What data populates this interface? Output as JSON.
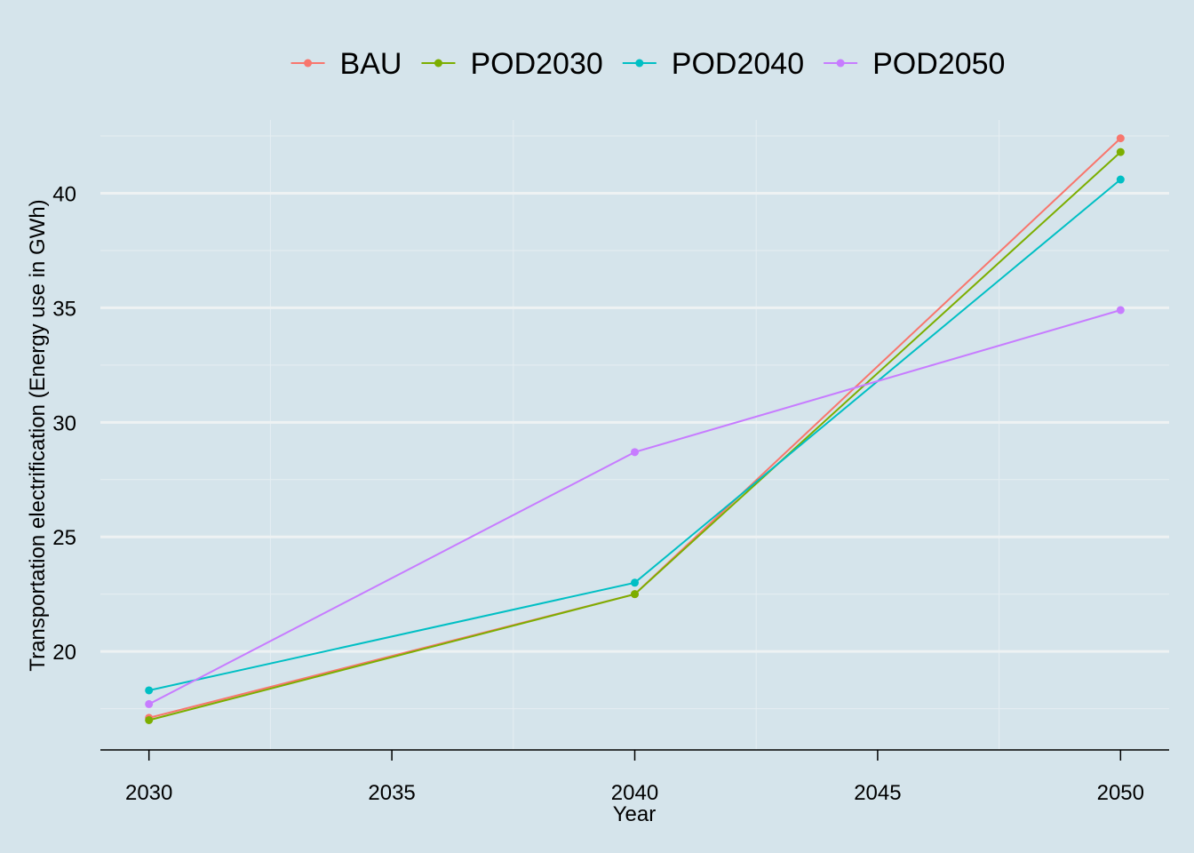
{
  "chart_data": {
    "type": "line",
    "title": "",
    "xlabel": "Year",
    "ylabel": "Transportation electrification (Energy use in GWh)",
    "x": [
      2030,
      2040,
      2050
    ],
    "xticks": [
      2030,
      2035,
      2040,
      2045,
      2050
    ],
    "xtick_labels": [
      "2030",
      "2035",
      "2040",
      "2045",
      "2050"
    ],
    "xlim": [
      2029,
      2051
    ],
    "yticks": [
      20,
      25,
      30,
      35,
      40
    ],
    "ytick_labels": [
      "20",
      "25",
      "30",
      "35",
      "40"
    ],
    "ylim": [
      15.7,
      43.2
    ],
    "grid": true,
    "legend_position": "top",
    "series": [
      {
        "name": "BAU",
        "color": "#f8766d",
        "values": [
          17.1,
          22.5,
          42.4
        ]
      },
      {
        "name": "POD2030",
        "color": "#7cae00",
        "values": [
          17.0,
          22.5,
          41.8
        ]
      },
      {
        "name": "POD2040",
        "color": "#00bfc4",
        "values": [
          18.3,
          23.0,
          40.6
        ]
      },
      {
        "name": "POD2050",
        "color": "#c77cff",
        "values": [
          17.7,
          28.7,
          34.9
        ]
      }
    ]
  }
}
